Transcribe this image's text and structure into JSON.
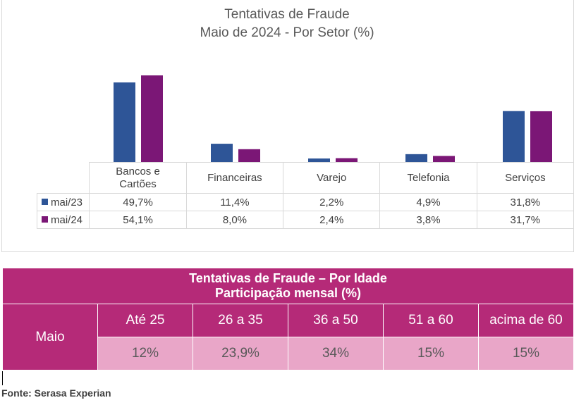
{
  "chart_data": {
    "type": "bar",
    "title": "Tentativas de Fraude",
    "subtitle": "Maio de 2024 - Por Setor (%)",
    "categories": [
      [
        "Bancos e",
        "Cartões"
      ],
      [
        "Financeiras"
      ],
      [
        "Varejo"
      ],
      [
        "Telefonia"
      ],
      [
        "Serviços"
      ]
    ],
    "series": [
      {
        "name": "mai/23",
        "color": "#2e5597",
        "values": [
          49.7,
          11.4,
          2.2,
          4.9,
          31.8
        ],
        "labels": [
          "49,7%",
          "11,4%",
          "2,2%",
          "4,9%",
          "31,8%"
        ]
      },
      {
        "name": "mai/24",
        "color": "#7b1776",
        "values": [
          54.1,
          8.0,
          2.4,
          3.8,
          31.7
        ],
        "labels": [
          "54,1%",
          "8,0%",
          "2,4%",
          "3,8%",
          "31,7%"
        ]
      }
    ],
    "ylim": [
      0,
      55
    ],
    "grid": false,
    "legend": "data-table"
  },
  "age_table": {
    "title_line1": "Tentativas de Fraude – Por Idade",
    "title_line2": "Participação mensal (%)",
    "row_label": "Maio",
    "headers": [
      "Até 25",
      "26 a 35",
      "36 a 50",
      "51 a 60",
      "acima de 60"
    ],
    "values": [
      "12%",
      "23,9%",
      "34%",
      "15%",
      "15%"
    ],
    "colors": {
      "header_bg": "#b52a78",
      "value_bg": "#e9a6c8"
    }
  },
  "source": "Fonte: Serasa Experian"
}
